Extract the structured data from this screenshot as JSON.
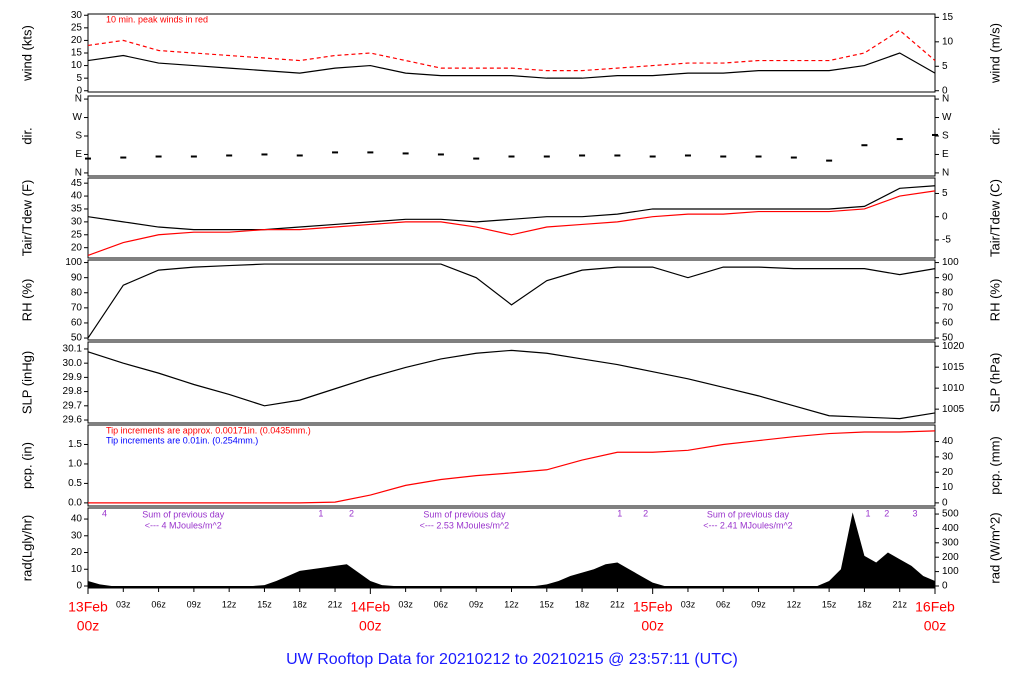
{
  "title": "UW Rooftop Data for 20210212  to  20210215 @ 23:57:11  (UTC)",
  "x_axis": {
    "xlim": [
      0,
      72
    ],
    "xticks": [
      {
        "value": 3,
        "label": "03z"
      },
      {
        "value": 6,
        "label": "06z"
      },
      {
        "value": 9,
        "label": "09z"
      },
      {
        "value": 12,
        "label": "12z"
      },
      {
        "value": 15,
        "label": "15z"
      },
      {
        "value": 18,
        "label": "18z"
      },
      {
        "value": 21,
        "label": "21z"
      },
      {
        "value": 27,
        "label": "03z"
      },
      {
        "value": 30,
        "label": "06z"
      },
      {
        "value": 33,
        "label": "09z"
      },
      {
        "value": 36,
        "label": "12z"
      },
      {
        "value": 39,
        "label": "15z"
      },
      {
        "value": 42,
        "label": "18z"
      },
      {
        "value": 45,
        "label": "21z"
      },
      {
        "value": 51,
        "label": "03z"
      },
      {
        "value": 54,
        "label": "06z"
      },
      {
        "value": 57,
        "label": "09z"
      },
      {
        "value": 60,
        "label": "12z"
      },
      {
        "value": 63,
        "label": "15z"
      },
      {
        "value": 66,
        "label": "18z"
      },
      {
        "value": 69,
        "label": "21z"
      }
    ],
    "day_ticks": [
      {
        "value": 0,
        "label": "13Feb",
        "hour": "00z"
      },
      {
        "value": 24,
        "label": "14Feb",
        "hour": "00z"
      },
      {
        "value": 48,
        "label": "15Feb",
        "hour": "00z"
      },
      {
        "value": 72,
        "label": "16Feb",
        "hour": "00z"
      }
    ],
    "day_color": "#ff0000"
  },
  "chart_data": [
    {
      "type": "line",
      "ylabel": "wind (kts)",
      "y2label": "wind (m/s)",
      "ylim": [
        -0.5,
        30.5
      ],
      "yticks": [
        0,
        5,
        10,
        15,
        20,
        25,
        30
      ],
      "y2lim": [
        -0.26,
        15.69
      ],
      "y2ticks": [
        0,
        5,
        10,
        15
      ],
      "x": [
        0,
        3,
        6,
        9,
        12,
        15,
        18,
        21,
        24,
        27,
        30,
        33,
        36,
        39,
        42,
        45,
        48,
        51,
        54,
        57,
        60,
        63,
        66,
        69,
        72
      ],
      "series": [
        {
          "color": "#000000",
          "values": [
            12,
            14,
            11,
            10,
            9,
            8,
            7,
            9,
            10,
            7,
            6,
            6,
            6,
            5,
            5,
            6,
            6,
            7,
            7,
            8,
            8,
            8,
            10,
            15,
            7
          ]
        },
        {
          "color": "#ff0000",
          "dashed": true,
          "values": [
            18,
            20,
            16,
            15,
            14,
            13,
            12,
            14,
            15,
            12,
            9,
            9,
            9,
            8,
            8,
            9,
            10,
            11,
            11,
            12,
            12,
            12,
            15,
            24,
            12
          ]
        }
      ],
      "annotations": [
        {
          "text": "10 min. peak winds in red",
          "color": "#ff0000"
        }
      ]
    },
    {
      "type": "scatter",
      "ylabel": "dir.",
      "y2label": "dir.",
      "ylim": [
        -15,
        375
      ],
      "yticks": [
        {
          "value": 0,
          "label": "N"
        },
        {
          "value": 90,
          "label": "E"
        },
        {
          "value": 180,
          "label": "S"
        },
        {
          "value": 270,
          "label": "W"
        },
        {
          "value": 360,
          "label": "N"
        }
      ],
      "y2lim": [
        -15,
        375
      ],
      "y2ticks": [
        {
          "value": 0,
          "label": "N"
        },
        {
          "value": 90,
          "label": "E"
        },
        {
          "value": 180,
          "label": "S"
        },
        {
          "value": 270,
          "label": "W"
        },
        {
          "value": 360,
          "label": "N"
        }
      ],
      "x": [
        0,
        3,
        6,
        9,
        12,
        15,
        18,
        21,
        24,
        27,
        30,
        33,
        36,
        39,
        42,
        45,
        48,
        51,
        54,
        57,
        60,
        63,
        66,
        69,
        72
      ],
      "series": [
        {
          "color": "#000000",
          "values": [
            70,
            75,
            80,
            80,
            85,
            90,
            85,
            100,
            100,
            95,
            90,
            70,
            80,
            80,
            85,
            85,
            80,
            85,
            80,
            80,
            75,
            60,
            135,
            165,
            185
          ]
        }
      ]
    },
    {
      "type": "line",
      "ylabel": "Tair/Tdew (F)",
      "y2label": "Tair/Tdew (C)",
      "ylim": [
        16,
        47
      ],
      "yticks": [
        20,
        25,
        30,
        35,
        40,
        45
      ],
      "y2lim": [
        -8.89,
        8.33
      ],
      "y2ticks": [
        -5,
        0,
        5
      ],
      "x": [
        0,
        3,
        6,
        9,
        12,
        15,
        18,
        21,
        24,
        27,
        30,
        33,
        36,
        39,
        42,
        45,
        48,
        51,
        54,
        57,
        60,
        63,
        66,
        69,
        72
      ],
      "series": [
        {
          "color": "#000000",
          "values": [
            32,
            30,
            28,
            27,
            27,
            27,
            28,
            29,
            30,
            31,
            31,
            30,
            31,
            32,
            32,
            33,
            35,
            35,
            35,
            35,
            35,
            35,
            36,
            43,
            44
          ]
        },
        {
          "color": "#ff0000",
          "values": [
            17,
            22,
            25,
            26,
            26,
            27,
            27,
            28,
            29,
            30,
            30,
            28,
            25,
            28,
            29,
            30,
            32,
            33,
            33,
            34,
            34,
            34,
            35,
            40,
            42
          ]
        }
      ]
    },
    {
      "type": "line",
      "ylabel": "RH (%)",
      "y2label": "RH (%)",
      "ylim": [
        48.7,
        101.7
      ],
      "yticks": [
        50,
        60,
        70,
        80,
        90,
        100
      ],
      "y2lim": [
        48.7,
        101.7
      ],
      "y2ticks": [
        50,
        60,
        70,
        80,
        90,
        100
      ],
      "x": [
        0,
        3,
        6,
        9,
        12,
        15,
        18,
        21,
        24,
        27,
        30,
        33,
        36,
        39,
        42,
        45,
        48,
        51,
        54,
        57,
        60,
        63,
        66,
        69,
        72
      ],
      "series": [
        {
          "color": "#000000",
          "values": [
            50,
            85,
            95,
            97,
            98,
            99,
            99,
            99,
            99,
            99,
            99,
            90,
            72,
            88,
            95,
            97,
            97,
            90,
            97,
            97,
            96,
            96,
            96,
            92,
            96
          ]
        }
      ]
    },
    {
      "type": "line",
      "ylabel": "SLP (inHg)",
      "y2label": "SLP (hPa)",
      "ylim": [
        29.579,
        30.149
      ],
      "yticks": [
        29.6,
        29.7,
        29.8,
        29.9,
        {
          "value": 30,
          "label": "30.0"
        },
        30.1
      ],
      "y2lim": [
        1001.7,
        1021.0
      ],
      "y2ticks": [
        1005,
        1010,
        1015,
        1020
      ],
      "x": [
        0,
        3,
        6,
        9,
        12,
        15,
        18,
        21,
        24,
        27,
        30,
        33,
        36,
        39,
        42,
        45,
        48,
        51,
        54,
        57,
        60,
        63,
        66,
        69,
        72
      ],
      "series": [
        {
          "color": "#000000",
          "values": [
            30.08,
            30.0,
            29.93,
            29.85,
            29.78,
            29.7,
            29.74,
            29.82,
            29.9,
            29.97,
            30.03,
            30.07,
            30.09,
            30.07,
            30.03,
            29.99,
            29.94,
            29.89,
            29.83,
            29.77,
            29.7,
            29.63,
            29.62,
            29.61,
            29.65
          ]
        }
      ]
    },
    {
      "type": "line",
      "ylabel": "pcp. (in)",
      "y2label": "pcp. (mm)",
      "ylim": [
        -0.08,
        2.0
      ],
      "yticks": [
        {
          "value": 0,
          "label": "0.0"
        },
        0.5,
        {
          "value": 1,
          "label": "1.0"
        },
        1.5
      ],
      "y2lim": [
        -2.03,
        50.8
      ],
      "y2ticks": [
        0,
        10,
        20,
        30,
        40
      ],
      "x": [
        0,
        3,
        6,
        9,
        12,
        15,
        18,
        21,
        24,
        27,
        30,
        33,
        36,
        39,
        42,
        45,
        48,
        51,
        54,
        57,
        60,
        63,
        66,
        69,
        72
      ],
      "series": [
        {
          "color": "#ff0000",
          "values": [
            0,
            0,
            0,
            0,
            0,
            0,
            0,
            0.02,
            0.2,
            0.45,
            0.6,
            0.7,
            0.77,
            0.85,
            1.1,
            1.3,
            1.3,
            1.35,
            1.5,
            1.6,
            1.7,
            1.78,
            1.82,
            1.82,
            1.85
          ]
        }
      ],
      "annotations": [
        {
          "text": "Tip increments are approx. 0.00171in. (0.0435mm.)",
          "color": "#ff0000"
        },
        {
          "text": "Tip increments are 0.01in. (0.254mm.)",
          "color": "#0000ff"
        }
      ]
    },
    {
      "type": "area",
      "ylabel": "rad(Lgly/hr)",
      "y2label": "rad (W/m^2)",
      "ylim": [
        -1.2,
        46.6
      ],
      "yticks": [
        0,
        10,
        20,
        30,
        40
      ],
      "y2lim": [
        -14,
        542
      ],
      "y2ticks": [
        0,
        100,
        200,
        300,
        400,
        500
      ],
      "x": [
        0,
        1,
        2,
        3,
        4,
        5,
        6,
        7,
        8,
        9,
        10,
        11,
        12,
        13,
        14,
        15,
        16,
        17,
        18,
        19,
        20,
        21,
        22,
        23,
        24,
        25,
        26,
        27,
        28,
        29,
        30,
        31,
        32,
        33,
        34,
        35,
        36,
        37,
        38,
        39,
        40,
        41,
        42,
        43,
        44,
        45,
        46,
        47,
        48,
        49,
        50,
        51,
        52,
        53,
        54,
        55,
        56,
        57,
        58,
        59,
        60,
        61,
        62,
        63,
        64,
        65,
        66,
        67,
        68,
        69,
        70,
        71,
        72
      ],
      "series": [
        {
          "color": "#000000",
          "values": [
            3,
            1,
            0,
            0,
            0,
            0,
            0,
            0,
            0,
            0,
            0,
            0,
            0,
            0,
            0,
            0.5,
            3,
            6,
            9,
            10,
            11,
            12,
            13,
            8,
            3,
            0.5,
            0,
            0,
            0,
            0,
            0,
            0,
            0,
            0,
            0,
            0,
            0,
            0,
            0,
            1,
            3,
            6,
            8,
            10,
            13,
            14,
            10,
            6,
            2,
            0,
            0,
            0,
            0,
            0,
            0,
            0,
            0,
            0,
            0,
            0,
            0,
            0,
            0,
            3,
            10,
            44,
            18,
            14,
            20,
            16,
            12,
            6,
            3
          ]
        }
      ],
      "annotation_color": "#9933cc",
      "notes": [
        {
          "x": 8.1,
          "lines": [
            "Sum of previous day",
            "<--- 4 MJoules/m^2"
          ]
        },
        {
          "x": 32,
          "lines": [
            "Sum of previous day",
            "<--- 2.53 MJoules/m^2"
          ]
        },
        {
          "x": 56.1,
          "lines": [
            "Sum of previous day",
            "<--- 2.41 MJoules/m^2"
          ]
        }
      ],
      "markers": [
        {
          "x": 1.4,
          "label": "4"
        },
        {
          "x": 19.8,
          "label": "1"
        },
        {
          "x": 22.4,
          "label": "2"
        },
        {
          "x": 45.2,
          "label": "1"
        },
        {
          "x": 47.4,
          "label": "2"
        },
        {
          "x": 66.3,
          "label": "1"
        },
        {
          "x": 67.9,
          "label": "2"
        },
        {
          "x": 70.3,
          "label": "3"
        }
      ]
    }
  ]
}
